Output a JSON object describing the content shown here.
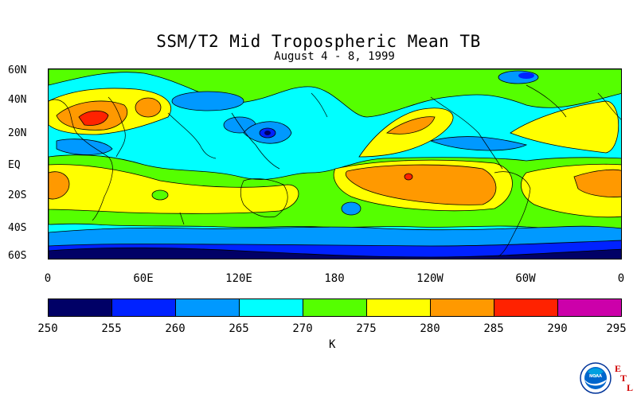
{
  "title": "SSM/T2 Mid Tropospheric Mean TB",
  "subtitle": "August 4 - 8, 1999",
  "lat_labels": [
    "60N",
    "40N",
    "20N",
    "EQ",
    "20S",
    "40S",
    "60S"
  ],
  "lon_labels": [
    "0",
    "60E",
    "120E",
    "180",
    "120W",
    "60W",
    "0"
  ],
  "colorbar": {
    "ticks": [
      "250",
      "255",
      "260",
      "265",
      "270",
      "275",
      "280",
      "285",
      "290",
      "295"
    ],
    "colors": [
      "#000066",
      "#0022ff",
      "#0099ff",
      "#00ffff",
      "#55ff00",
      "#ffff00",
      "#ff9900",
      "#ff2200",
      "#cc00aa"
    ],
    "unit": "K"
  },
  "logo": {
    "name": "NOAA",
    "letters": [
      "E",
      "T",
      "L"
    ]
  }
}
